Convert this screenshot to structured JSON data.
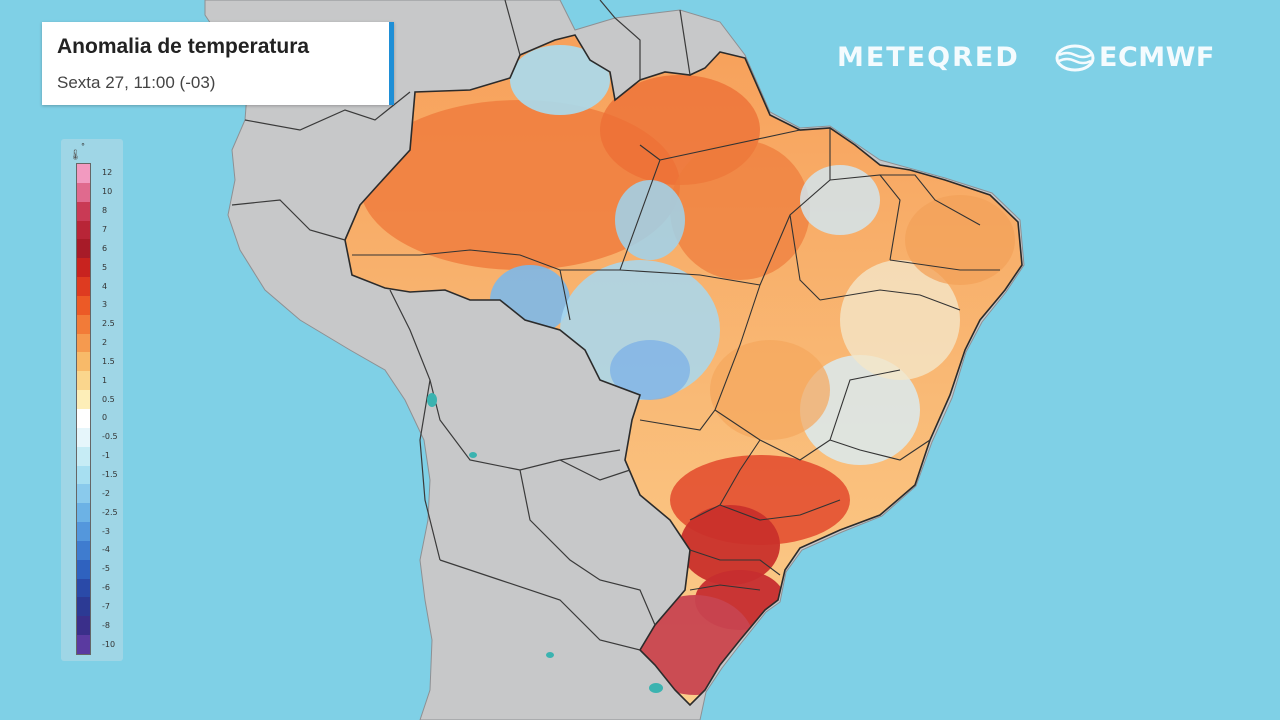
{
  "header": {
    "title": "Anomalia de temperatura",
    "subtitle": "Sexta 27, 11:00 (-03)"
  },
  "brands": {
    "meteored": "METEQRED",
    "ecmwf": "ECMWF"
  },
  "legend": {
    "unit": "°",
    "labels": [
      "12",
      "10",
      "8",
      "7",
      "6",
      "5",
      "4",
      "3",
      "2.5",
      "2",
      "1.5",
      "1",
      "0.5",
      "0",
      "-0.5",
      "-1",
      "-1.5",
      "-2",
      "-2.5",
      "-3",
      "-4",
      "-5",
      "-6",
      "-7",
      "-8",
      "-10"
    ],
    "colors": [
      "#f29ac0",
      "#e06a8e",
      "#c93a55",
      "#b82537",
      "#a71b28",
      "#c8231f",
      "#de3b20",
      "#ec5a26",
      "#f27b38",
      "#f59a4f",
      "#f8ba69",
      "#fad68d",
      "#fdeeb8",
      "#ffffff",
      "#e6f6fb",
      "#c6ecf5",
      "#a7dff1",
      "#8acaec",
      "#6cb2e5",
      "#5497dc",
      "#3f7ccf",
      "#2f62bf",
      "#2a4aa8",
      "#2c3a94",
      "#3a2f8a",
      "#5a3aa0"
    ]
  },
  "colors": {
    "ocean": "#7fd0e6",
    "land": "#c7c8c9",
    "border": "#2b2b2b",
    "accent": "#1f8fd6"
  }
}
